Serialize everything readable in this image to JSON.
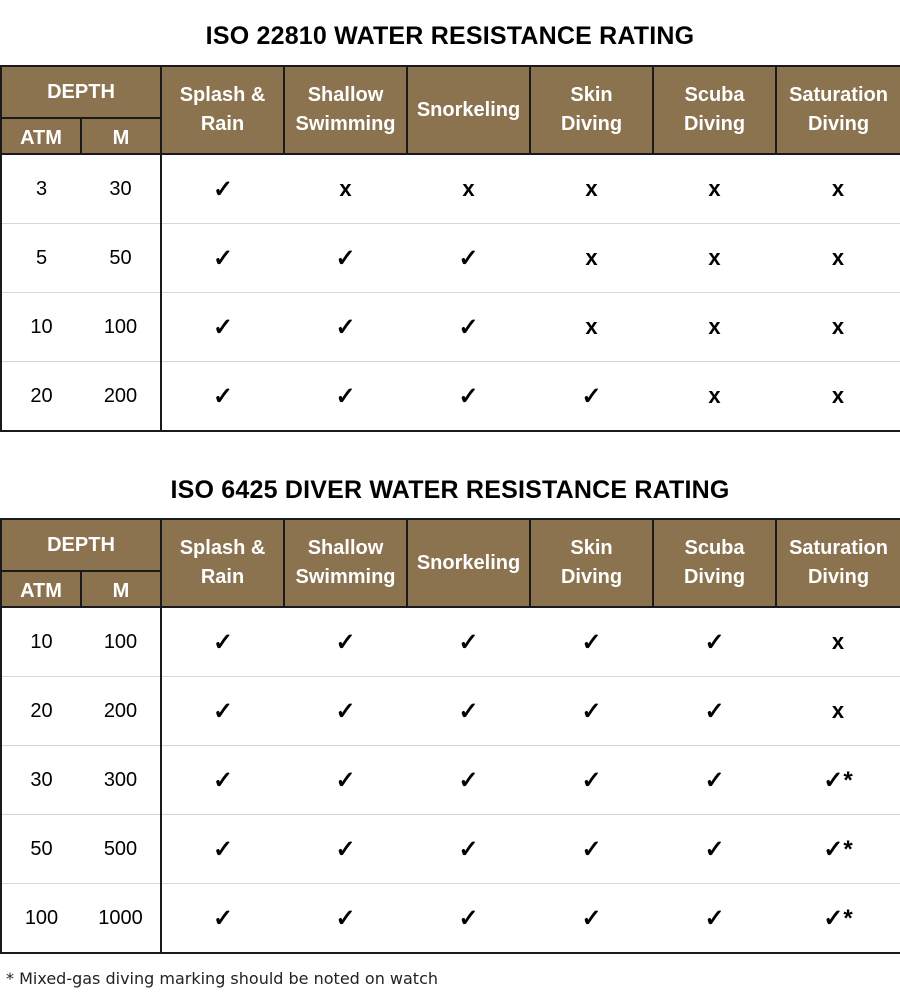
{
  "colors": {
    "header_bg": "#8b7350",
    "header_text": "#ffffff"
  },
  "headers": {
    "depth": "DEPTH",
    "atm": "ATM",
    "m": "M",
    "activities": [
      "Splash &\nRain",
      "Shallow\nSwimming",
      "Snorkeling",
      "Skin\nDiving",
      "Scuba\nDiving",
      "Saturation\nDiving"
    ]
  },
  "tables": [
    {
      "title": "ISO 22810 WATER RESISTANCE RATING",
      "rows": [
        {
          "atm": "3",
          "m": "30",
          "marks": [
            "✓",
            "x",
            "x",
            "x",
            "x",
            "x"
          ]
        },
        {
          "atm": "5",
          "m": "50",
          "marks": [
            "✓",
            "✓",
            "✓",
            "x",
            "x",
            "x"
          ]
        },
        {
          "atm": "10",
          "m": "100",
          "marks": [
            "✓",
            "✓",
            "✓",
            "x",
            "x",
            "x"
          ]
        },
        {
          "atm": "20",
          "m": "200",
          "marks": [
            "✓",
            "✓",
            "✓",
            "✓",
            "x",
            "x"
          ]
        }
      ]
    },
    {
      "title": "ISO 6425 DIVER WATER RESISTANCE RATING",
      "rows": [
        {
          "atm": "10",
          "m": "100",
          "marks": [
            "✓",
            "✓",
            "✓",
            "✓",
            "✓",
            "x"
          ]
        },
        {
          "atm": "20",
          "m": "200",
          "marks": [
            "✓",
            "✓",
            "✓",
            "✓",
            "✓",
            "x"
          ]
        },
        {
          "atm": "30",
          "m": "300",
          "marks": [
            "✓",
            "✓",
            "✓",
            "✓",
            "✓",
            "✓*"
          ]
        },
        {
          "atm": "50",
          "m": "500",
          "marks": [
            "✓",
            "✓",
            "✓",
            "✓",
            "✓",
            "✓*"
          ]
        },
        {
          "atm": "100",
          "m": "1000",
          "marks": [
            "✓",
            "✓",
            "✓",
            "✓",
            "✓",
            "✓*"
          ]
        }
      ]
    }
  ],
  "footnote": "* Mixed-gas diving marking should be noted on watch"
}
